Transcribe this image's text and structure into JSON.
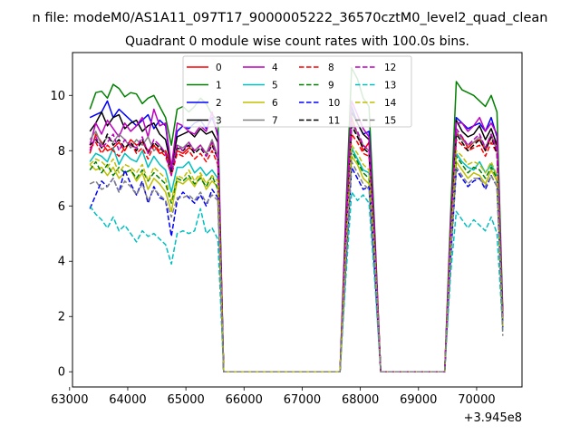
{
  "figure": {
    "suptitle": "n file: modeM0/AS1A11_097T17_9000005222_36570cztM0_level2_quad_clean",
    "title": "Quadrant 0 module wise count rates with 100.0s bins.",
    "offset_label": "+3.945e8"
  },
  "chart_data": {
    "type": "line",
    "title": "Quadrant 0 module wise count rates with 100.0s bins.",
    "xlabel": "",
    "ylabel": "",
    "x_offset": 394500000,
    "xlim": [
      63050,
      70780
    ],
    "ylim": [
      -0.55,
      11.55
    ],
    "xticks": [
      63000,
      64000,
      65000,
      66000,
      67000,
      68000,
      69000,
      70000
    ],
    "yticks": [
      0,
      2,
      4,
      6,
      8,
      10
    ],
    "grid": false,
    "legend_position": "top-center",
    "legend_columns": 4,
    "x": [
      63350,
      63450,
      63550,
      63650,
      63750,
      63850,
      63950,
      64050,
      64150,
      64250,
      64350,
      64450,
      64550,
      64650,
      64750,
      64850,
      64950,
      65050,
      65150,
      65250,
      65350,
      65450,
      65550,
      65650,
      67650,
      67750,
      67850,
      67950,
      68050,
      68150,
      68250,
      68350,
      69450,
      69550,
      69650,
      69750,
      69850,
      69950,
      70050,
      70150,
      70250,
      70350,
      70450
    ],
    "series": [
      {
        "name": "0",
        "color": "#ff0000",
        "dash": "solid",
        "values": [
          7.9,
          8.6,
          8.3,
          8.0,
          8.1,
          8.3,
          8.0,
          8.4,
          8.2,
          8.3,
          8.0,
          8.2,
          7.9,
          8.0,
          7.4,
          8.0,
          7.9,
          8.1,
          8.0,
          8.2,
          7.9,
          8.3,
          7.8,
          0,
          0,
          4.6,
          9.2,
          8.6,
          8.0,
          8.3,
          4.4,
          0,
          0,
          4.8,
          8.6,
          8.5,
          8.1,
          8.3,
          8.4,
          8.0,
          8.5,
          8.2,
          2.0
        ]
      },
      {
        "name": "1",
        "color": "#008000",
        "dash": "solid",
        "values": [
          9.5,
          10.1,
          10.15,
          9.9,
          10.4,
          10.25,
          9.95,
          10.1,
          10.05,
          9.7,
          9.9,
          10.0,
          9.6,
          9.2,
          8.2,
          9.5,
          9.6,
          9.4,
          9.6,
          9.9,
          9.7,
          9.3,
          9.1,
          0,
          0,
          5.8,
          11.0,
          10.6,
          9.9,
          9.6,
          5.0,
          0,
          0,
          5.6,
          10.5,
          10.2,
          10.1,
          10.0,
          9.8,
          9.6,
          10.0,
          9.4,
          2.2
        ]
      },
      {
        "name": "2",
        "color": "#0000ff",
        "dash": "solid",
        "values": [
          9.2,
          9.3,
          9.4,
          9.8,
          9.2,
          9.5,
          9.3,
          9.1,
          8.9,
          9.1,
          9.3,
          8.8,
          9.1,
          8.9,
          7.3,
          8.7,
          8.9,
          8.8,
          9.0,
          9.1,
          8.8,
          9.2,
          8.6,
          0,
          0,
          5.2,
          9.6,
          9.0,
          8.6,
          8.7,
          4.7,
          0,
          0,
          5.0,
          9.2,
          9.0,
          8.8,
          8.9,
          9.0,
          8.7,
          9.2,
          8.5,
          2.0
        ]
      },
      {
        "name": "3",
        "color": "#000000",
        "dash": "solid",
        "values": [
          8.7,
          9.0,
          9.4,
          8.9,
          9.2,
          9.3,
          8.8,
          9.0,
          9.1,
          8.7,
          8.9,
          9.0,
          8.6,
          8.4,
          7.4,
          8.5,
          8.6,
          8.7,
          8.5,
          8.8,
          8.6,
          8.7,
          8.3,
          0,
          0,
          5.1,
          9.4,
          9.0,
          8.6,
          8.4,
          4.6,
          0,
          0,
          5.0,
          9.1,
          8.7,
          8.5,
          8.6,
          8.9,
          8.4,
          8.8,
          8.2,
          2.0
        ]
      },
      {
        "name": "4",
        "color": "#bf00bf",
        "dash": "solid",
        "values": [
          8.2,
          9.0,
          8.6,
          9.1,
          8.8,
          8.5,
          9.0,
          8.7,
          8.9,
          9.2,
          8.5,
          9.5,
          8.9,
          9.0,
          7.4,
          9.0,
          8.9,
          8.7,
          8.6,
          8.9,
          8.7,
          9.4,
          8.5,
          0,
          0,
          5.5,
          9.8,
          9.3,
          8.8,
          8.5,
          4.8,
          0,
          0,
          5.2,
          9.0,
          9.0,
          8.7,
          8.9,
          9.2,
          8.7,
          9.0,
          8.6,
          2.0
        ]
      },
      {
        "name": "5",
        "color": "#00bfbf",
        "dash": "solid",
        "values": [
          7.6,
          7.9,
          7.8,
          7.6,
          8.1,
          7.5,
          7.9,
          7.7,
          7.6,
          8.0,
          7.4,
          7.8,
          7.5,
          7.3,
          6.5,
          7.4,
          7.4,
          7.6,
          7.2,
          7.4,
          7.1,
          7.3,
          7.0,
          0,
          0,
          4.3,
          8.1,
          7.7,
          7.3,
          7.2,
          4.0,
          0,
          0,
          4.6,
          7.9,
          7.6,
          7.4,
          7.3,
          7.6,
          7.2,
          7.5,
          7.1,
          1.7
        ]
      },
      {
        "name": "6",
        "color": "#bfbf00",
        "dash": "solid",
        "values": [
          7.5,
          7.3,
          7.4,
          7.1,
          7.4,
          7.0,
          7.2,
          7.3,
          6.9,
          7.2,
          6.6,
          7.0,
          6.8,
          6.5,
          5.8,
          6.9,
          6.8,
          7.0,
          6.7,
          7.1,
          6.6,
          6.9,
          6.7,
          0,
          0,
          4.0,
          7.8,
          7.5,
          7.0,
          6.8,
          3.8,
          0,
          0,
          4.3,
          7.6,
          7.3,
          7.0,
          7.2,
          7.1,
          6.8,
          7.3,
          6.9,
          1.6
        ]
      },
      {
        "name": "7",
        "color": "#808080",
        "dash": "solid",
        "values": [
          8.4,
          8.7,
          8.2,
          8.5,
          8.3,
          8.6,
          8.4,
          8.1,
          8.4,
          8.2,
          8.5,
          8.0,
          8.2,
          7.9,
          7.2,
          8.2,
          8.1,
          8.3,
          8.0,
          8.2,
          7.9,
          8.4,
          7.8,
          0,
          0,
          4.8,
          9.0,
          8.6,
          8.2,
          8.0,
          4.4,
          0,
          0,
          4.8,
          8.7,
          8.4,
          8.2,
          8.3,
          8.5,
          8.1,
          8.6,
          8.0,
          1.9
        ]
      },
      {
        "name": "8",
        "color": "#ff0000",
        "dash": "dashed",
        "values": [
          8.1,
          8.3,
          7.9,
          8.2,
          8.0,
          7.8,
          8.1,
          8.3,
          7.9,
          8.1,
          7.7,
          8.2,
          8.0,
          7.8,
          7.1,
          7.9,
          7.8,
          8.0,
          7.7,
          7.9,
          7.6,
          8.0,
          7.5,
          0,
          0,
          4.7,
          8.6,
          8.3,
          7.9,
          7.8,
          4.3,
          0,
          0,
          4.7,
          8.4,
          8.2,
          8.0,
          8.1,
          8.2,
          7.8,
          8.3,
          7.9,
          1.9
        ]
      },
      {
        "name": "9",
        "color": "#008000",
        "dash": "dashed",
        "values": [
          7.3,
          7.6,
          7.2,
          7.5,
          7.1,
          7.4,
          7.2,
          7.3,
          7.0,
          7.3,
          6.9,
          7.2,
          7.0,
          6.8,
          6.1,
          7.0,
          6.9,
          7.1,
          6.8,
          7.0,
          6.7,
          7.1,
          6.6,
          0,
          0,
          4.2,
          8.0,
          7.6,
          7.2,
          7.0,
          3.9,
          0,
          0,
          4.4,
          7.8,
          7.5,
          7.2,
          7.4,
          7.3,
          7.0,
          7.4,
          7.0,
          1.7
        ]
      },
      {
        "name": "10",
        "color": "#0000ff",
        "dash": "dashed",
        "values": [
          5.9,
          6.4,
          6.9,
          6.7,
          7.0,
          6.5,
          7.3,
          6.8,
          6.4,
          6.9,
          6.1,
          6.7,
          6.3,
          6.2,
          4.9,
          6.2,
          6.5,
          6.3,
          6.1,
          6.4,
          6.0,
          6.6,
          6.3,
          0,
          0,
          3.8,
          7.4,
          7.0,
          6.6,
          6.7,
          3.5,
          0,
          0,
          4.0,
          7.3,
          7.0,
          6.7,
          6.9,
          7.0,
          6.6,
          7.1,
          6.7,
          1.6
        ]
      },
      {
        "name": "11",
        "color": "#000000",
        "dash": "dashed",
        "values": [
          8.2,
          8.4,
          8.1,
          8.6,
          8.2,
          8.4,
          8.1,
          8.3,
          8.0,
          8.4,
          7.9,
          8.3,
          8.1,
          7.9,
          7.2,
          8.1,
          8.0,
          8.2,
          7.9,
          8.1,
          7.8,
          8.2,
          7.7,
          0,
          0,
          4.8,
          8.9,
          8.5,
          8.1,
          7.9,
          4.4,
          0,
          0,
          4.8,
          8.6,
          8.3,
          8.0,
          8.2,
          8.4,
          8.0,
          8.5,
          7.9,
          1.9
        ]
      },
      {
        "name": "12",
        "color": "#bf00bf",
        "dash": "dashed",
        "values": [
          8.0,
          8.5,
          8.1,
          8.3,
          8.6,
          8.0,
          8.4,
          8.2,
          8.1,
          8.5,
          7.9,
          8.4,
          8.2,
          7.9,
          7.1,
          8.2,
          8.0,
          8.3,
          8.0,
          8.2,
          7.8,
          8.3,
          7.7,
          0,
          0,
          4.9,
          9.0,
          8.7,
          8.2,
          8.0,
          4.5,
          0,
          0,
          4.9,
          8.8,
          8.5,
          8.2,
          8.4,
          8.6,
          8.1,
          8.6,
          8.0,
          1.9
        ]
      },
      {
        "name": "13",
        "color": "#00bfbf",
        "dash": "dashed",
        "values": [
          6.0,
          5.7,
          5.5,
          5.2,
          5.6,
          5.1,
          5.3,
          5.0,
          4.7,
          5.1,
          4.9,
          5.0,
          4.8,
          4.6,
          3.9,
          5.0,
          5.1,
          5.0,
          5.1,
          5.9,
          5.0,
          5.2,
          4.8,
          0,
          0,
          3.4,
          6.5,
          6.2,
          6.4,
          6.1,
          3.2,
          0,
          0,
          3.5,
          5.8,
          5.5,
          5.2,
          5.5,
          5.3,
          5.1,
          5.6,
          5.0,
          1.5
        ]
      },
      {
        "name": "14",
        "color": "#bfbf00",
        "dash": "dashed",
        "values": [
          7.5,
          7.7,
          7.6,
          7.4,
          7.7,
          7.2,
          7.5,
          7.4,
          7.2,
          7.5,
          6.9,
          7.4,
          7.2,
          7.0,
          6.2,
          7.1,
          7.0,
          7.3,
          6.9,
          7.2,
          6.8,
          7.1,
          6.9,
          0,
          0,
          4.3,
          8.2,
          7.9,
          7.5,
          7.3,
          4.1,
          0,
          0,
          4.5,
          8.0,
          7.8,
          7.5,
          7.6,
          7.5,
          7.2,
          7.6,
          7.1,
          1.6
        ]
      },
      {
        "name": "15",
        "color": "#808080",
        "dash": "dashed",
        "values": [
          6.8,
          6.9,
          6.6,
          6.7,
          7.0,
          6.5,
          6.9,
          6.7,
          6.4,
          6.8,
          6.2,
          6.6,
          6.4,
          6.2,
          5.6,
          6.3,
          6.3,
          6.4,
          6.2,
          6.5,
          6.1,
          6.4,
          6.2,
          0,
          0,
          3.9,
          7.6,
          7.2,
          6.8,
          6.6,
          3.7,
          0,
          0,
          4.1,
          7.4,
          7.1,
          6.8,
          7.0,
          7.0,
          6.7,
          7.1,
          6.7,
          1.3
        ]
      }
    ]
  }
}
